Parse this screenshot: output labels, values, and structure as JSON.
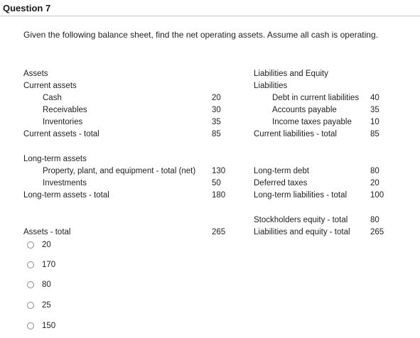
{
  "question": {
    "title": "Question 7",
    "text": "Given the following balance sheet, find the net operating assets. Assume all cash is operating."
  },
  "assets": {
    "heading": "Assets",
    "current_heading": "Current assets",
    "cash_label": "Cash",
    "cash_value": "20",
    "receivables_label": "Receivables",
    "receivables_value": "30",
    "inventories_label": "Inventories",
    "inventories_value": "35",
    "current_total_label": "Current assets - total",
    "current_total_value": "85",
    "longterm_heading": "Long-term assets",
    "ppe_label": "Property, plant, and equipment - total (net)",
    "ppe_value": "130",
    "investments_label": "Investments",
    "investments_value": "50",
    "longterm_total_label": "Long-term assets - total",
    "longterm_total_value": "180",
    "total_label": "Assets - total",
    "total_value": "265"
  },
  "liabilities": {
    "heading": "Liabilities and Equity",
    "sub_heading": "Liabilities",
    "debt_label": "Debt in current liabilities",
    "debt_value": "40",
    "ap_label": "Accounts payable",
    "ap_value": "35",
    "itp_label": "Income taxes payable",
    "itp_value": "10",
    "current_total_label": "Current liabilities - total",
    "current_total_value": "85",
    "ltdebt_label": "Long-term debt",
    "ltdebt_value": "80",
    "deferred_label": "Deferred taxes",
    "deferred_value": "20",
    "lt_total_label": "Long-term liabilities - total",
    "lt_total_value": "100",
    "equity_label": "Stockholders equity - total",
    "equity_value": "80",
    "le_total_label": "Liabilities and equity - total",
    "le_total_value": "265"
  },
  "options": [
    "20",
    "170",
    "80",
    "25",
    "150"
  ]
}
